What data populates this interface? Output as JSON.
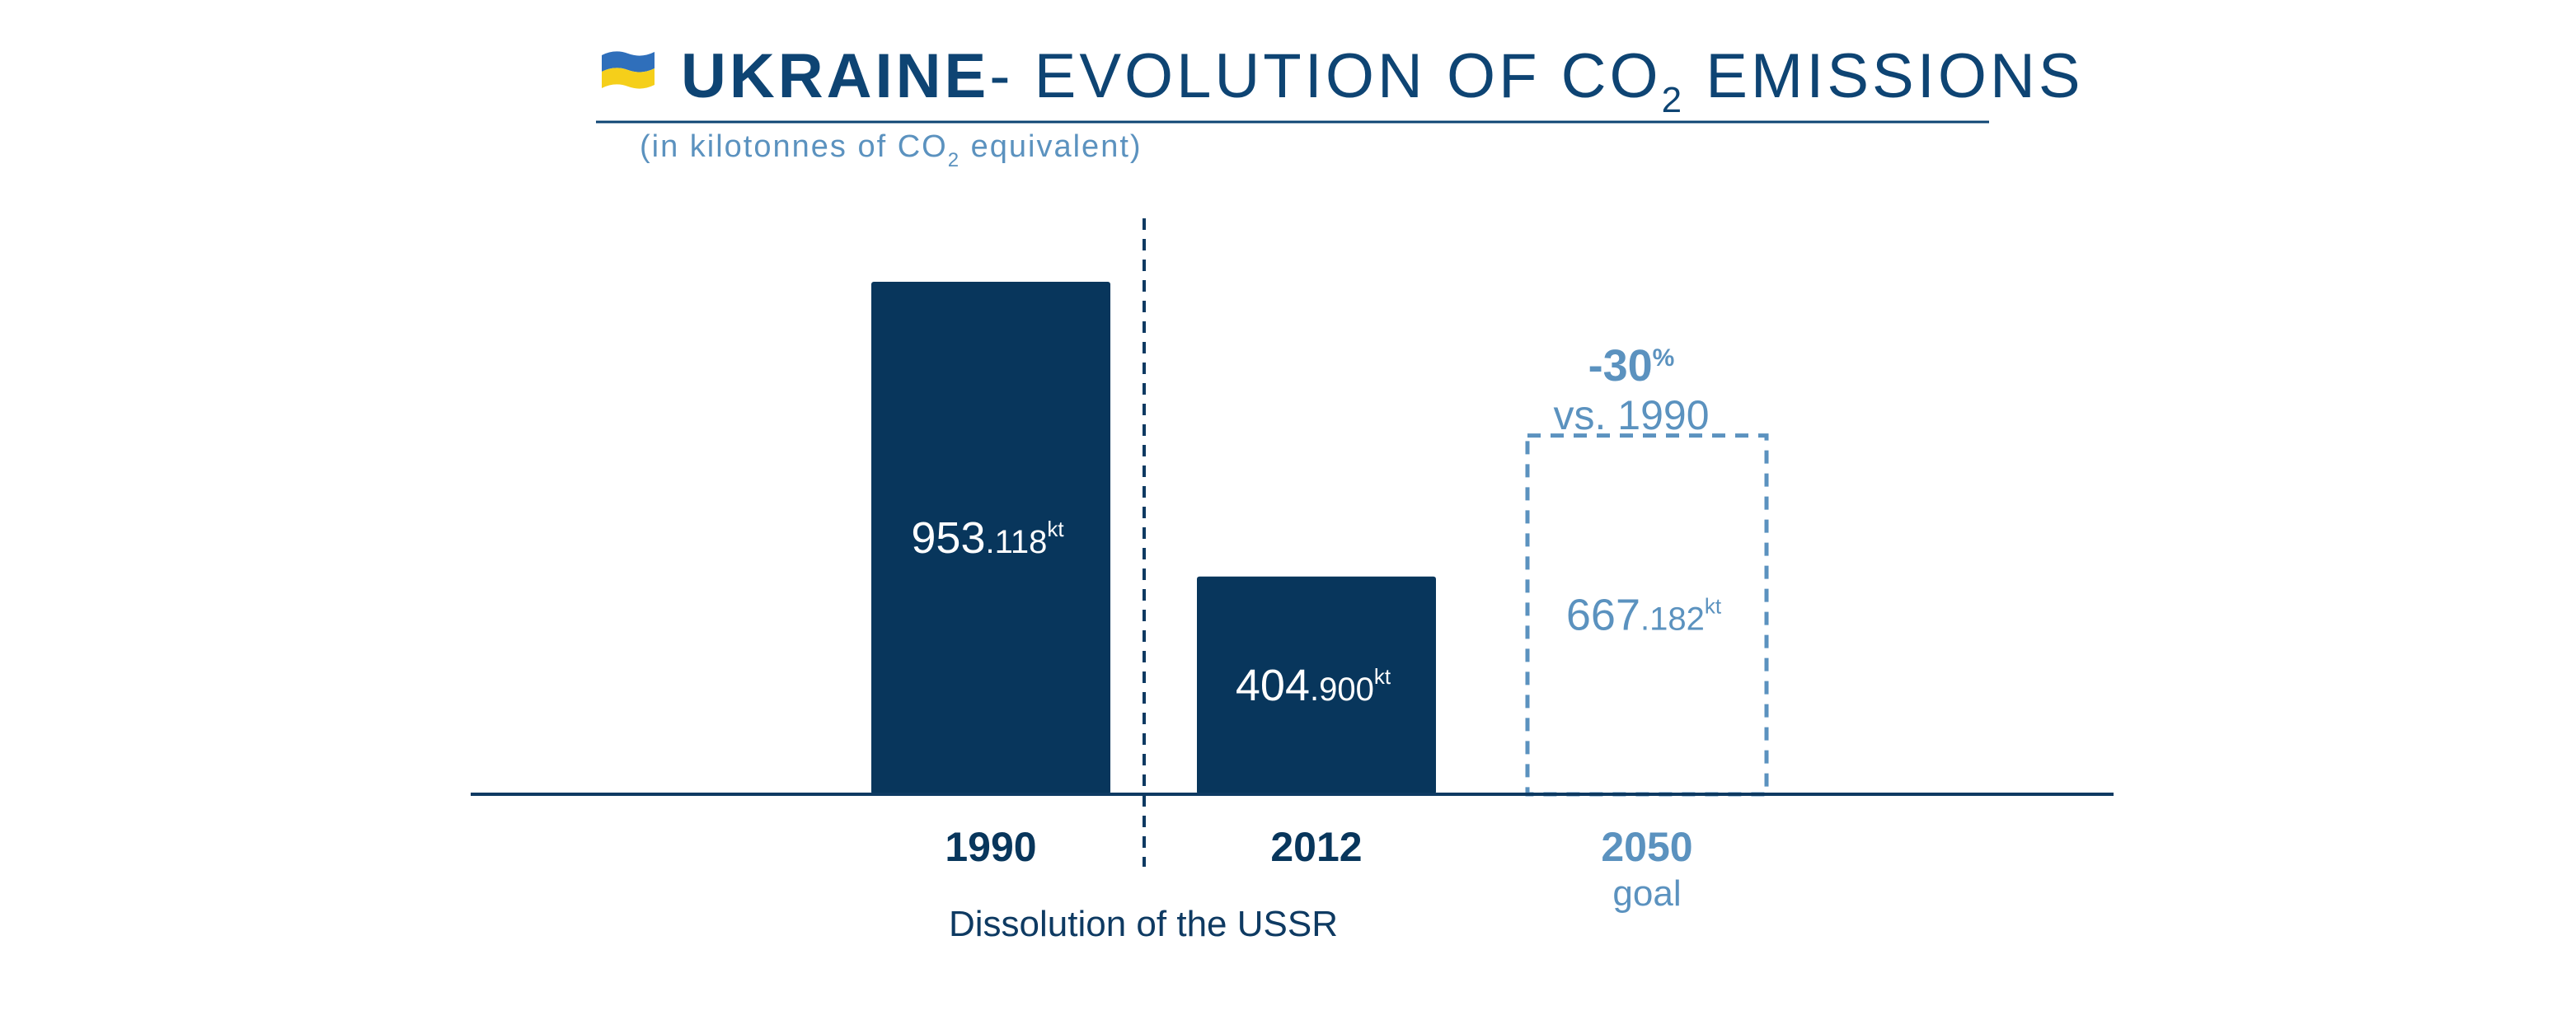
{
  "title": {
    "country": "UKRAINE",
    "rest_prefix": "- EVOLUTION OF CO",
    "rest_subscript": "2",
    "rest_suffix": " EMISSIONS"
  },
  "subtitle": {
    "prefix": "(in kilotonnes of CO",
    "subscript": "2",
    "suffix": " equivalent)"
  },
  "annotation": {
    "percent_number": "-30",
    "percent_sign": "%",
    "comparison": "vs. 1990"
  },
  "divider_label": "Dissolution of the USSR",
  "colors": {
    "title_blue": "#0e4473",
    "bar_fill": "#08365c",
    "goal_blue": "#5b92bf",
    "bar_label": "#ffffff",
    "baseline": "#0e3a62",
    "divider": "#0e3a62",
    "flag_blue": "#2f6fbb",
    "flag_yellow": "#f5cf1a"
  },
  "icons": {
    "flag": "ukraine-flag-icon"
  },
  "chart_data": {
    "type": "bar",
    "title": "UKRAINE- EVOLUTION OF CO2 EMISSIONS",
    "subtitle": "(in kilotonnes of CO2 equivalent)",
    "categories": [
      "1990",
      "2012",
      "2050"
    ],
    "category_sublabels": [
      "",
      "",
      "goal"
    ],
    "values": [
      953118,
      404900,
      667182
    ],
    "value_labels": [
      {
        "main": "953",
        "decimal": ".118",
        "unit": "kt"
      },
      {
        "main": "404",
        "decimal": ".900",
        "unit": "kt"
      },
      {
        "main": "667",
        "decimal": ".182",
        "unit": "kt"
      }
    ],
    "bar_styles": [
      "solid",
      "solid",
      "dashed"
    ],
    "ylim": [
      0,
      953118
    ],
    "grid": false,
    "legend": "none",
    "xlabel": "",
    "ylabel": ""
  }
}
